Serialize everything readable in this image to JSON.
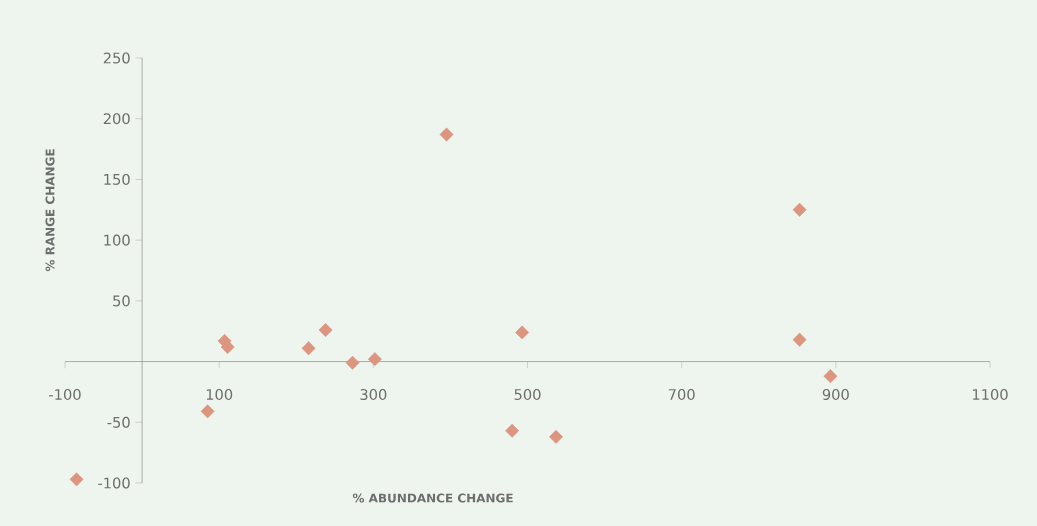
{
  "chart_data": {
    "type": "scatter",
    "xlabel": "% ABUNDANCE CHANGE",
    "ylabel": "% RANGE CHANGE",
    "xlim": [
      -100,
      1100
    ],
    "ylim": [
      -100,
      250
    ],
    "xticks": [
      -100,
      100,
      300,
      500,
      700,
      900,
      1100
    ],
    "yticks": [
      -100,
      -50,
      50,
      100,
      150,
      200,
      250
    ],
    "marker": "diamond",
    "series": [
      {
        "color": "#dc9680",
        "x": [
          -85,
          85,
          107,
          111,
          216,
          238,
          273,
          302,
          395,
          480,
          493,
          537,
          853,
          853,
          893
        ],
        "values": [
          -97,
          -41,
          17,
          12,
          11,
          26,
          -1,
          2,
          187,
          -57,
          24,
          -62,
          125,
          18,
          -12
        ]
      }
    ]
  }
}
